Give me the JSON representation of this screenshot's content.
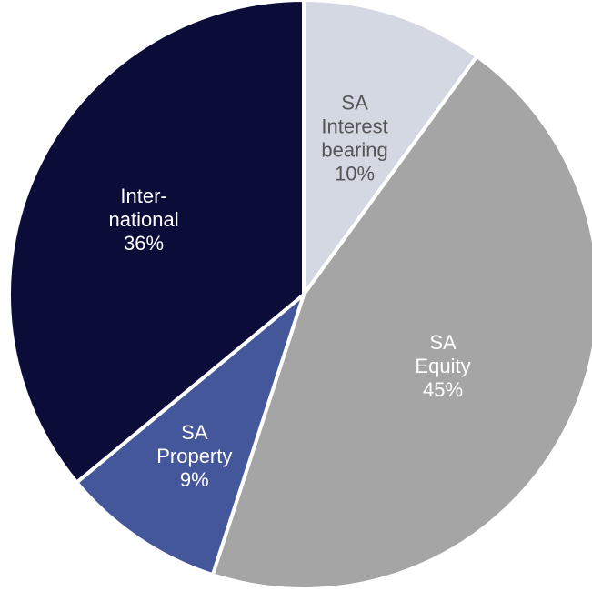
{
  "chart_data": {
    "type": "pie",
    "start_angle_deg": 0,
    "direction": "clockwise",
    "slices": [
      {
        "label": [
          "SA",
          "Interest",
          "bearing"
        ],
        "value": 10,
        "value_label": "10%",
        "color": "#d4d8e3",
        "text_color": "#555555"
      },
      {
        "label": [
          "SA",
          "Equity"
        ],
        "value": 45,
        "value_label": "45%",
        "color": "#a5a5a5",
        "text_color": "#ffffff"
      },
      {
        "label": [
          "SA",
          "Property"
        ],
        "value": 9,
        "value_label": "9%",
        "color": "#45579b",
        "text_color": "#ffffff"
      },
      {
        "label": [
          "Inter-",
          "national"
        ],
        "value": 36,
        "value_label": "36%",
        "color": "#0b0c38",
        "text_color": "#ffffff"
      }
    ]
  }
}
